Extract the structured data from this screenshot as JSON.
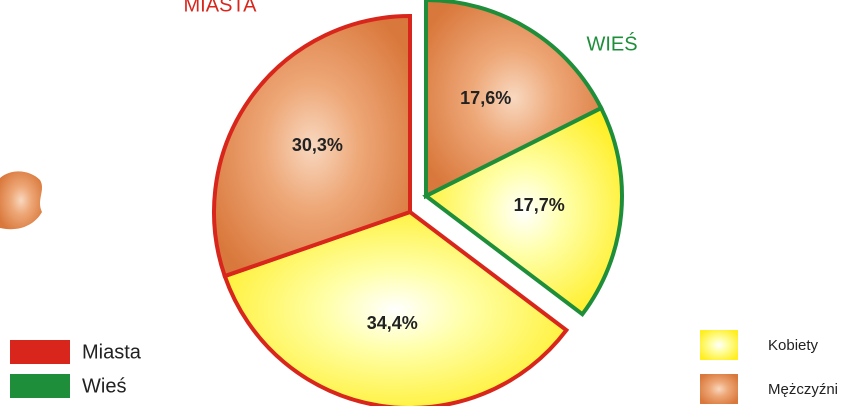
{
  "chart_data": {
    "type": "pie",
    "categories": [
      {
        "name": "Kobiety",
        "color": "#ffff55"
      },
      {
        "name": "Mężczyźni",
        "color": "#e8915a"
      }
    ],
    "series": [
      {
        "name": "Miasta",
        "label": "MIASTA",
        "color": "#d8261c",
        "exploded": false,
        "categories": [
          "Kobiety",
          "Mężczyźni"
        ],
        "values": [
          34.4,
          30.3
        ],
        "value_labels": [
          "34,4%",
          "30,3%"
        ]
      },
      {
        "name": "Wieś",
        "label": "WIEŚ",
        "color": "#1e8e3a",
        "exploded": true,
        "categories": [
          "Mężczyźni",
          "Kobiety"
        ],
        "values": [
          17.6,
          17.7
        ],
        "value_labels": [
          "17,6%",
          "17,7%"
        ]
      }
    ]
  }
}
